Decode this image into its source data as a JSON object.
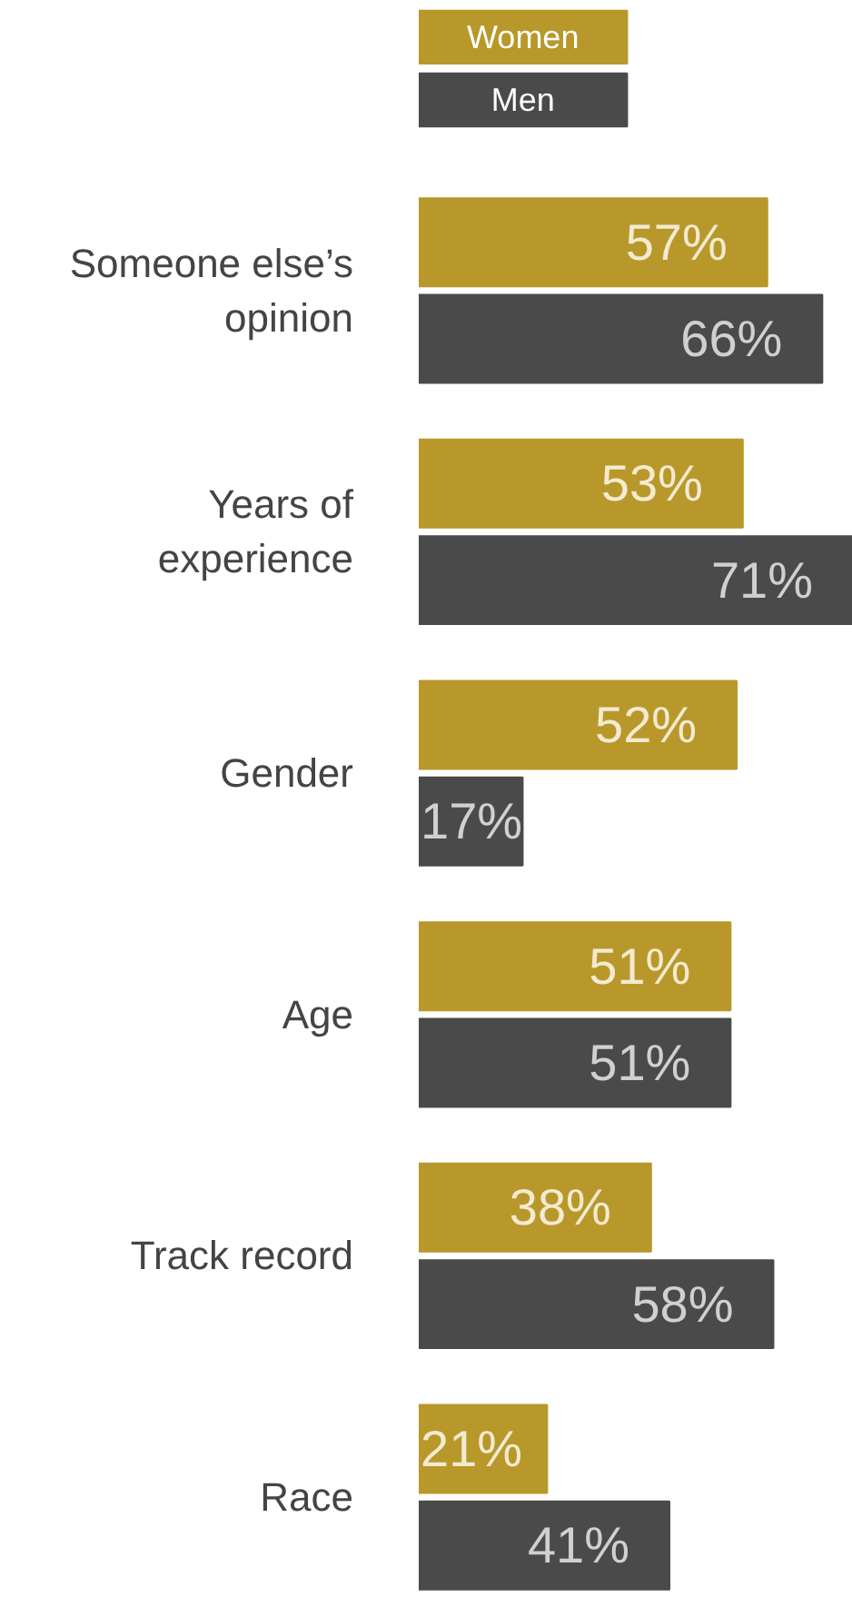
{
  "chart_data": {
    "type": "bar",
    "orientation": "horizontal",
    "categories": [
      "Someone else’s\nopinion",
      "Years of\nexperience",
      "Gender",
      "Age",
      "Track record",
      "Race"
    ],
    "series": [
      {
        "name": "Women",
        "color": "#b8982a",
        "values": [
          57,
          53,
          52,
          51,
          38,
          21
        ],
        "value_labels": [
          "57%",
          "53%",
          "52%",
          "51%",
          "38%",
          "21%"
        ]
      },
      {
        "name": "Men",
        "color": "#4a4a4a",
        "values": [
          66,
          71,
          17,
          51,
          58,
          41
        ],
        "value_labels": [
          "66%",
          "71%",
          "17%",
          "51%",
          "58%",
          "41%"
        ]
      }
    ],
    "legend": "top"
  }
}
